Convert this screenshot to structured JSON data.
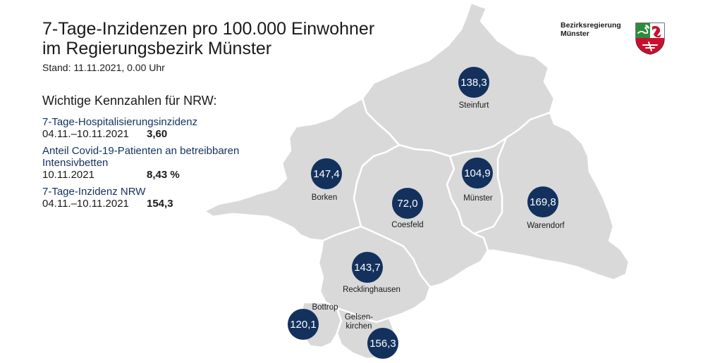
{
  "title_line1": "7-Tage-Inzidenzen pro 100.000 Einwohner",
  "title_line2": "im Regierungsbezirk Münster",
  "stand": "Stand: 11.11.2021, 0.00 Uhr",
  "kennzahlen": {
    "heading": "Wichtige Kennzahlen für NRW:",
    "items": [
      {
        "label": "7-Tage-Hospitalisierungsinzidenz",
        "date": "04.11.–10.11.2021",
        "value": "3,60"
      },
      {
        "label": "Anteil Covid-19-Patienten an betreibbaren Intensivbetten",
        "date": "10.11.2021",
        "value": "8,43 %"
      },
      {
        "label": "7-Tage-Inzidenz NRW",
        "date": "04.11.–10.11.2021",
        "value": "154,3"
      }
    ]
  },
  "brand": {
    "line1": "Bezirksregierung",
    "line2": "Münster"
  },
  "regions": {
    "steinfurt": {
      "name": "Steinfurt",
      "value": "138,3"
    },
    "borken": {
      "name": "Borken",
      "value": "147,4"
    },
    "coesfeld": {
      "name": "Coesfeld",
      "value": "72,0"
    },
    "muenster": {
      "name": "Münster",
      "value": "104,9"
    },
    "warendorf": {
      "name": "Warendorf",
      "value": "169,8"
    },
    "recklinghausen": {
      "name": "Recklinghausen",
      "value": "143,7"
    },
    "bottrop": {
      "name": "Bottrop",
      "value": "120,1"
    },
    "gelsenkirchen": {
      "name_line1": "Gelsen-",
      "name_line2": "kirchen",
      "value": "156,3"
    }
  },
  "colors": {
    "region_fill": "#d9d9d9",
    "border": "#ffffff",
    "badge": "#13315c",
    "accent_text": "#13315c"
  }
}
